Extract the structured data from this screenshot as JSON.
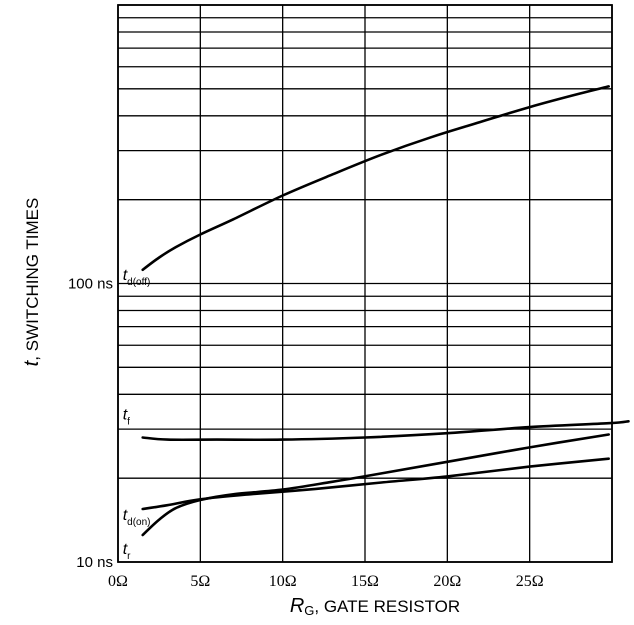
{
  "chart_data": {
    "type": "line",
    "xlabel": {
      "symbol": "R",
      "subscript": "G",
      "text": ", GATE RESISTOR"
    },
    "ylabel": {
      "symbol": "t",
      "text": ", SWITCHING TIMES"
    },
    "xlim": [
      0,
      30
    ],
    "ylim": [
      10,
      1000
    ],
    "y_scale": "log",
    "grid": true,
    "x_ticks": [
      {
        "value": 0,
        "label": "0Ω"
      },
      {
        "value": 5,
        "label": "5Ω"
      },
      {
        "value": 10,
        "label": "10Ω"
      },
      {
        "value": 15,
        "label": "15Ω"
      },
      {
        "value": 20,
        "label": "20Ω"
      },
      {
        "value": 25,
        "label": "25Ω"
      }
    ],
    "y_ticks": [
      {
        "value": 10,
        "label": "10 ns"
      },
      {
        "value": 100,
        "label": "100 ns"
      }
    ],
    "series": [
      {
        "name": "t",
        "name_sub": "d(off)",
        "points": [
          [
            1.5,
            112
          ],
          [
            2.5,
            124
          ],
          [
            3.5,
            135
          ],
          [
            5,
            150
          ],
          [
            7,
            170
          ],
          [
            10,
            207
          ],
          [
            13,
            246
          ],
          [
            16,
            290
          ],
          [
            19,
            335
          ],
          [
            22,
            380
          ],
          [
            25,
            430
          ],
          [
            28,
            480
          ],
          [
            29.8,
            510
          ]
        ]
      },
      {
        "name": "t",
        "name_sub": "f",
        "points": [
          [
            1.5,
            28
          ],
          [
            3,
            27.5
          ],
          [
            6,
            27.5
          ],
          [
            10,
            27.5
          ],
          [
            15,
            28
          ],
          [
            20,
            29
          ],
          [
            25,
            30.5
          ],
          [
            29.8,
            31.5
          ],
          [
            31,
            32
          ]
        ]
      },
      {
        "name": "t",
        "name_sub": "d(on)",
        "points": [
          [
            1.5,
            15.5
          ],
          [
            3,
            16
          ],
          [
            5,
            16.8
          ],
          [
            8,
            17.5
          ],
          [
            12,
            18.3
          ],
          [
            16,
            19.3
          ],
          [
            20,
            20.3
          ],
          [
            25,
            22
          ],
          [
            29.8,
            23.5
          ]
        ]
      },
      {
        "name": "t",
        "name_sub": "r",
        "points": [
          [
            1.5,
            12.5
          ],
          [
            2.5,
            14.2
          ],
          [
            3.5,
            15.6
          ],
          [
            5,
            16.7
          ],
          [
            7,
            17.5
          ],
          [
            10,
            18.2
          ],
          [
            13,
            19.4
          ],
          [
            16,
            20.8
          ],
          [
            20,
            22.9
          ],
          [
            25,
            25.8
          ],
          [
            29.8,
            28.7
          ]
        ]
      }
    ]
  }
}
